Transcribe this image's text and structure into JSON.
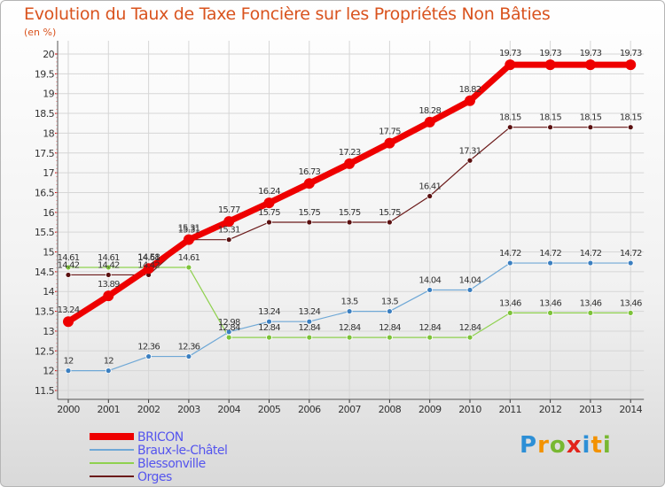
{
  "title": "Evolution du Taux de Taxe Foncière sur les Propriétés Non Bâties",
  "unit_label": "(en %)",
  "logo": {
    "text": "Proxiti",
    "colors": [
      "#2d8fd6",
      "#f39200",
      "#78b832",
      "#e2231a",
      "#2d8fd6",
      "#f39200",
      "#78b832"
    ]
  },
  "chart_data": {
    "type": "line",
    "title": "Evolution du Taux de Taxe Foncière sur les Propriétés Non Bâties",
    "ylabel": "(en %)",
    "xlabel": "",
    "ylim": [
      11.5,
      20
    ],
    "yticks": [
      "11.5",
      "12",
      "12.5",
      "13",
      "13.5",
      "14",
      "14.5",
      "15",
      "15.5",
      "16",
      "16.5",
      "17",
      "17.5",
      "18",
      "18.5",
      "19",
      "19.5",
      "20"
    ],
    "categories": [
      "2000",
      "2001",
      "2002",
      "2003",
      "2004",
      "2005",
      "2006",
      "2007",
      "2008",
      "2009",
      "2010",
      "2011",
      "2012",
      "2013",
      "2014"
    ],
    "series": [
      {
        "name": "Orges",
        "color": "#6b1a1a",
        "marker": "#5a1010",
        "width": 1.2,
        "values": [
          14.42,
          14.42,
          14.42,
          15.31,
          15.31,
          15.75,
          15.75,
          15.75,
          15.75,
          16.41,
          17.31,
          18.15,
          18.15,
          18.15,
          18.15
        ],
        "labels": [
          "14.42",
          "14.42",
          "14.42",
          "15.31",
          "15.31",
          "15.75",
          "15.75",
          "15.75",
          "15.75",
          "16.41",
          "17.31",
          "18.15",
          "18.15",
          "18.15",
          "18.15"
        ]
      },
      {
        "name": "Blessonville",
        "color": "#8fd14f",
        "marker": "#7dc23a",
        "width": 1.2,
        "values": [
          14.61,
          14.61,
          14.61,
          14.61,
          12.84,
          12.84,
          12.84,
          12.84,
          12.84,
          12.84,
          12.84,
          13.46,
          13.46,
          13.46,
          13.46
        ],
        "labels": [
          "14.61",
          "14.61",
          "14.61",
          "14.61",
          "12.84",
          "12.84",
          "12.84",
          "12.84",
          "12.84",
          "12.84",
          "12.84",
          "13.46",
          "13.46",
          "13.46",
          "13.46"
        ]
      },
      {
        "name": "Braux-le-Châtel",
        "color": "#6fa8d6",
        "marker": "#3b7fc0",
        "width": 1.2,
        "values": [
          12,
          12,
          12.36,
          12.36,
          12.98,
          13.24,
          13.24,
          13.5,
          13.5,
          14.04,
          14.04,
          14.72,
          14.72,
          14.72,
          14.72
        ],
        "labels": [
          "12",
          "12",
          "12.36",
          "12.36",
          "12.98",
          "13.24",
          "13.24",
          "13.5",
          "13.5",
          "14.04",
          "14.04",
          "14.72",
          "14.72",
          "14.72",
          "14.72"
        ]
      },
      {
        "name": "BRICON",
        "color": "#ee0000",
        "marker": "#ee0000",
        "width": 7,
        "values": [
          13.24,
          13.89,
          14.58,
          15.31,
          15.77,
          16.24,
          16.73,
          17.23,
          17.75,
          18.28,
          18.82,
          19.73,
          19.73,
          19.73,
          19.73
        ],
        "labels": [
          "13.24",
          "13.89",
          "14.58",
          "15.31",
          "15.77",
          "16.24",
          "16.73",
          "17.23",
          "17.75",
          "18.28",
          "18.82",
          "19.73",
          "19.73",
          "19.73",
          "19.73"
        ]
      }
    ],
    "legend": {
      "position": "bottom-left",
      "items": [
        {
          "name": "BRICON",
          "color": "#ee0000",
          "text_color": "#5555ee"
        },
        {
          "name": "Braux-le-Châtel",
          "color": "#6fa8d6",
          "text_color": "#5555ee"
        },
        {
          "name": "Blessonville",
          "color": "#8fd14f",
          "text_color": "#5555ee"
        },
        {
          "name": "Orges",
          "color": "#6b1a1a",
          "text_color": "#5555ee"
        }
      ]
    }
  }
}
